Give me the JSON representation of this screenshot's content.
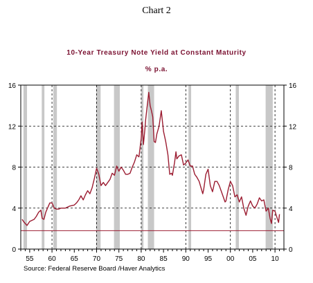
{
  "header": {
    "chart_number": "Chart 2"
  },
  "chart_data": {
    "type": "line",
    "title": "10-Year Treasury Note Yield at Constant Maturity",
    "subtitle": "% p.a.",
    "source": "Source:  Federal Reserve Board /Haver Analytics",
    "colors": {
      "series": "#9b1b30",
      "title": "#7a1030",
      "recession": "#c8c8c8",
      "reference_line": "#9b1b30"
    },
    "xlim": [
      1953,
      2012
    ],
    "ylim": [
      0,
      16
    ],
    "y_ticks": [
      0,
      4,
      8,
      12,
      16
    ],
    "y_tick_labels": [
      "0",
      "4",
      "8",
      "12",
      "16"
    ],
    "y_tick_labels_right": [
      "0",
      "4",
      "8",
      "12",
      "16"
    ],
    "x_ticks": [
      1955,
      1960,
      1965,
      1970,
      1975,
      1980,
      1985,
      1990,
      1995,
      2000,
      2005,
      2010
    ],
    "x_tick_labels": [
      "55",
      "60",
      "65",
      "70",
      "75",
      "80",
      "85",
      "90",
      "95",
      "00",
      "05",
      "10"
    ],
    "decade_gridlines": [
      1960,
      1970,
      1980,
      1990,
      2000,
      2010
    ],
    "horizontal_gridlines": [
      4,
      8,
      12
    ],
    "reference_line": {
      "y": 1.8
    },
    "recessions": [
      [
        1953.6,
        1954.4
      ],
      [
        1957.7,
        1958.3
      ],
      [
        1960.3,
        1961.1
      ],
      [
        1969.9,
        1970.9
      ],
      [
        1973.9,
        1975.2
      ],
      [
        1980.0,
        1980.5
      ],
      [
        1981.5,
        1982.9
      ],
      [
        1990.6,
        1991.2
      ],
      [
        2001.2,
        2001.9
      ],
      [
        2007.9,
        2009.5
      ]
    ],
    "series": [
      {
        "x": [
          1953.3,
          1953.6,
          1954.0,
          1954.4,
          1955.0,
          1955.5,
          1956.0,
          1956.5,
          1957.0,
          1957.5,
          1957.8,
          1958.2,
          1958.6,
          1959.0,
          1959.5,
          1960.0,
          1960.5,
          1961.0,
          1961.5,
          1962.0,
          1963.0,
          1964.0,
          1965.0,
          1965.5,
          1966.0,
          1966.5,
          1967.0,
          1967.5,
          1968.0,
          1968.5,
          1969.0,
          1969.5,
          1970.0,
          1970.5,
          1971.0,
          1971.5,
          1972.0,
          1973.0,
          1973.5,
          1974.0,
          1974.5,
          1975.0,
          1975.5,
          1976.0,
          1976.5,
          1977.0,
          1977.5,
          1978.0,
          1978.5,
          1979.0,
          1979.5,
          1980.0,
          1980.2,
          1980.5,
          1980.8,
          1981.0,
          1981.3,
          1981.7,
          1982.0,
          1982.3,
          1982.6,
          1982.9,
          1983.2,
          1983.5,
          1984.0,
          1984.5,
          1985.0,
          1985.5,
          1986.0,
          1986.4,
          1986.8,
          1987.0,
          1987.5,
          1987.8,
          1988.0,
          1988.5,
          1989.0,
          1989.5,
          1990.0,
          1990.5,
          1991.0,
          1991.5,
          1992.0,
          1992.5,
          1993.0,
          1993.8,
          1994.0,
          1994.5,
          1995.0,
          1995.5,
          1996.0,
          1996.5,
          1997.0,
          1997.5,
          1998.0,
          1998.8,
          1999.0,
          1999.5,
          2000.0,
          2000.5,
          2001.0,
          2001.5,
          2002.0,
          2002.5,
          2003.0,
          2003.5,
          2004.0,
          2004.5,
          2005.0,
          2005.5,
          2006.0,
          2006.5,
          2007.0,
          2007.5,
          2008.0,
          2008.5,
          2008.9,
          2009.2,
          2009.5,
          2010.0,
          2010.5,
          2010.8,
          2011.0
        ],
        "values": [
          2.9,
          2.7,
          2.5,
          2.3,
          2.7,
          2.8,
          2.9,
          3.2,
          3.6,
          3.8,
          3.0,
          2.9,
          3.6,
          4.0,
          4.5,
          4.5,
          4.0,
          3.9,
          3.9,
          4.0,
          4.0,
          4.2,
          4.3,
          4.5,
          4.8,
          5.2,
          4.8,
          5.3,
          5.7,
          5.4,
          6.0,
          6.9,
          7.9,
          7.3,
          6.2,
          6.5,
          6.2,
          6.8,
          7.4,
          7.2,
          8.1,
          7.6,
          8.0,
          7.7,
          7.3,
          7.3,
          7.4,
          8.0,
          8.5,
          9.2,
          9.0,
          10.8,
          12.4,
          10.2,
          11.6,
          12.6,
          13.8,
          15.3,
          14.0,
          13.5,
          12.9,
          10.5,
          10.4,
          11.2,
          12.0,
          13.5,
          11.5,
          10.5,
          9.2,
          7.3,
          7.4,
          7.2,
          8.5,
          9.5,
          8.8,
          9.1,
          9.2,
          8.2,
          8.4,
          8.7,
          8.1,
          8.1,
          7.3,
          7.0,
          6.6,
          5.4,
          5.8,
          7.3,
          7.8,
          6.2,
          5.6,
          6.6,
          6.6,
          6.2,
          5.6,
          4.6,
          4.7,
          5.8,
          6.6,
          6.2,
          5.1,
          5.3,
          4.6,
          5.1,
          4.0,
          3.3,
          4.2,
          4.7,
          4.2,
          4.0,
          4.4,
          5.0,
          4.7,
          4.8,
          3.7,
          4.0,
          3.0,
          2.5,
          3.8,
          3.7,
          3.0,
          2.6,
          3.4
        ]
      }
    ]
  }
}
